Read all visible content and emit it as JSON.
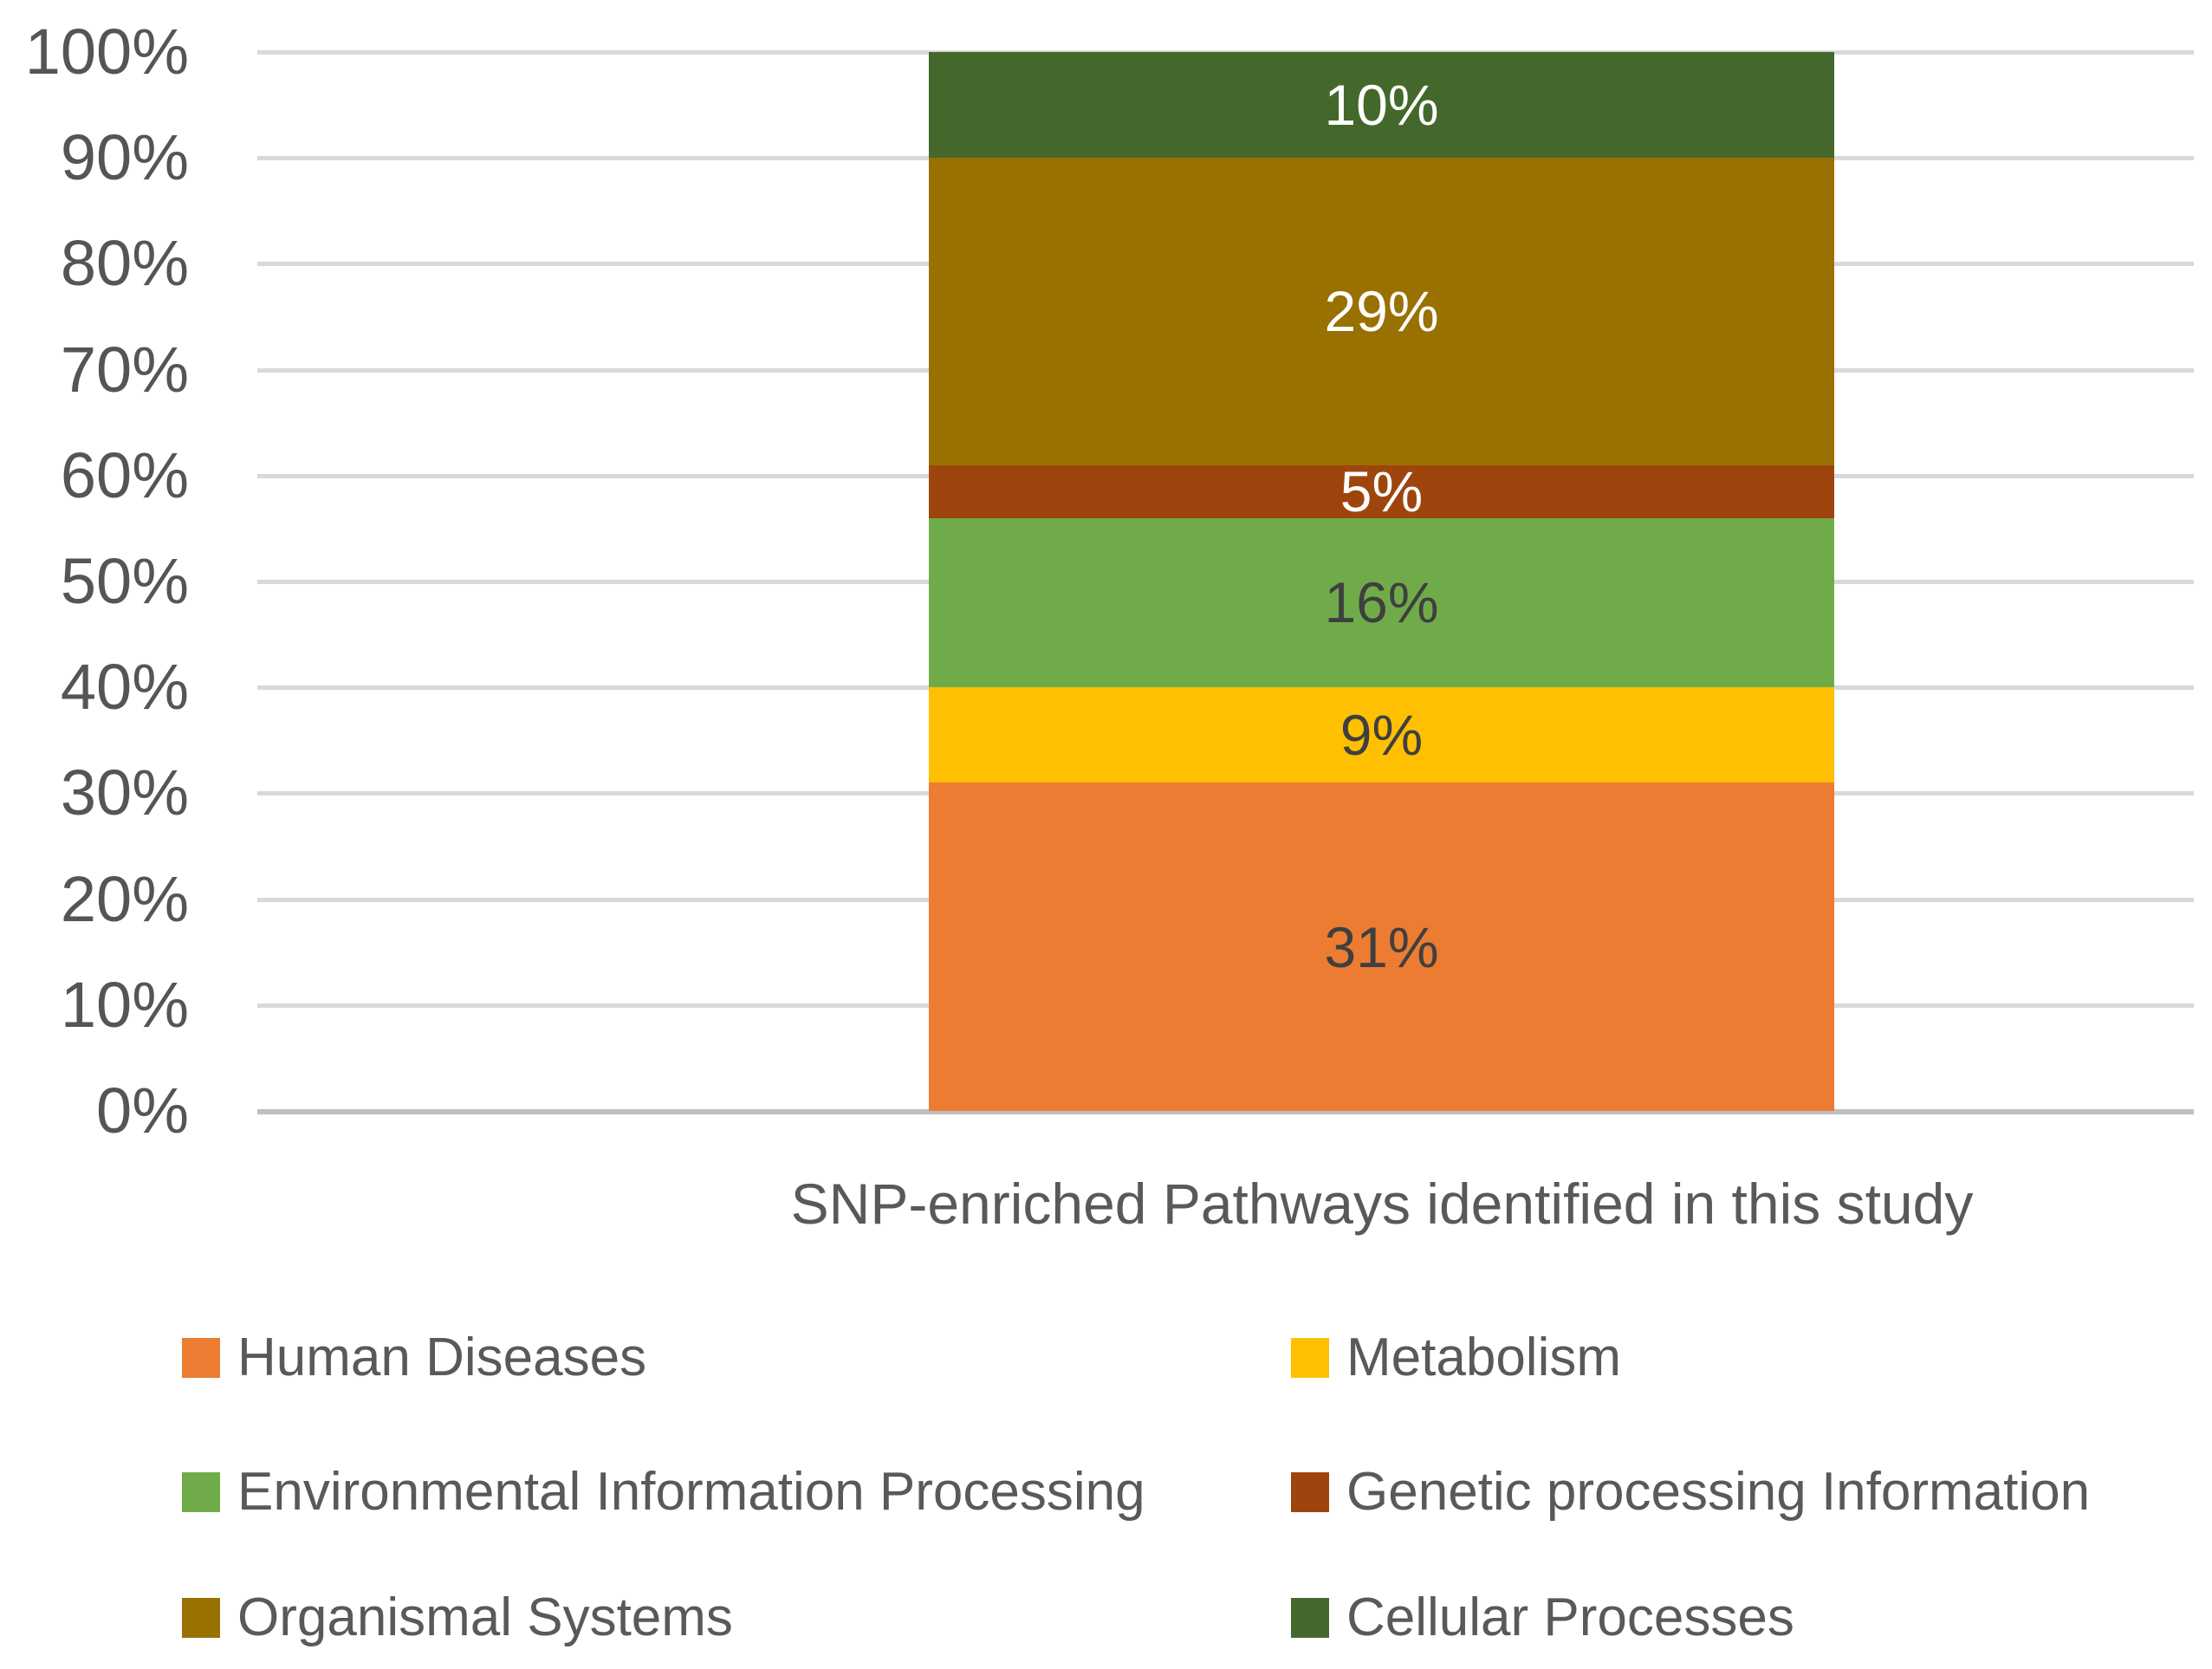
{
  "chart_data": {
    "type": "bar",
    "stacked": true,
    "percent_stacked": true,
    "title": "",
    "xlabel": "",
    "ylabel": "",
    "categories": [
      "SNP-enriched Pathways identified in this study"
    ],
    "series": [
      {
        "name": "Human Diseases",
        "values": [
          31
        ],
        "color": "#EC7C31",
        "data_label": "31%",
        "label_color": "#3F3F3F"
      },
      {
        "name": "Metabolism",
        "values": [
          9
        ],
        "color": "#FEC001",
        "data_label": "9%",
        "label_color": "#3F3F3F"
      },
      {
        "name": "Environmental Information Processing",
        "values": [
          16
        ],
        "color": "#6FAC49",
        "data_label": "16%",
        "label_color": "#3F3F3F"
      },
      {
        "name": "Genetic processing Information",
        "values": [
          5
        ],
        "color": "#9E450E",
        "data_label": "5%",
        "label_color": "#FFFFFF"
      },
      {
        "name": "Organismal Systems",
        "values": [
          29
        ],
        "color": "#987100",
        "data_label": "29%",
        "label_color": "#FFFFFF"
      },
      {
        "name": "Cellular Processes",
        "values": [
          10
        ],
        "color": "#44682B",
        "data_label": "10%",
        "label_color": "#FFFFFF"
      }
    ],
    "y_axis": {
      "min": 0,
      "max": 100,
      "step": 10,
      "tick_labels": [
        "0%",
        "10%",
        "20%",
        "30%",
        "40%",
        "50%",
        "60%",
        "70%",
        "80%",
        "90%",
        "100%"
      ]
    },
    "grid": true,
    "gridline_color": "#D9D9D9",
    "axis_line_color": "#BFBFBF",
    "tick_label_color": "#555555",
    "category_label_color": "#595959",
    "legend_position": "bottom",
    "legend": {
      "items": [
        {
          "label": "Human Diseases",
          "color": "#EC7C31"
        },
        {
          "label": "Metabolism",
          "color": "#FEC001"
        },
        {
          "label": "Environmental Information Processing",
          "color": "#6FAC49"
        },
        {
          "label": "Genetic processing Information",
          "color": "#9E450E"
        },
        {
          "label": "Organismal Systems",
          "color": "#987100"
        },
        {
          "label": "Cellular Processes",
          "color": "#44682B"
        }
      ],
      "text_color": "#595959"
    }
  }
}
